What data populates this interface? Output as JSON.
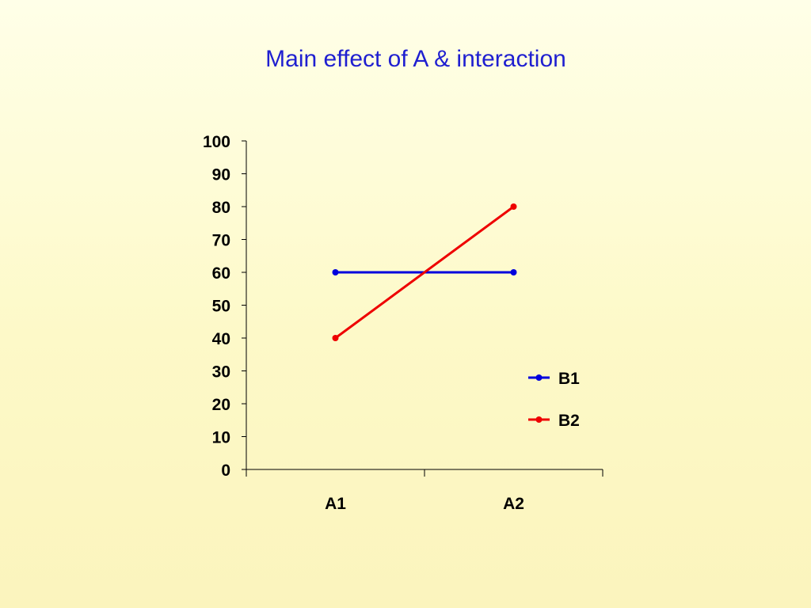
{
  "chart_data": {
    "type": "line",
    "title": "Main effect of A & interaction",
    "xlabel": "",
    "ylabel": "",
    "categories": [
      "A1",
      "A2"
    ],
    "ylim": [
      0,
      100
    ],
    "yticks": [
      0,
      10,
      20,
      30,
      40,
      50,
      60,
      70,
      80,
      90,
      100
    ],
    "grid": false,
    "legend_position": "right",
    "series": [
      {
        "name": "B1",
        "values": [
          60,
          60
        ],
        "color": "#0000dd"
      },
      {
        "name": "B2",
        "values": [
          40,
          80
        ],
        "color": "#ee0000"
      }
    ],
    "title_color": "#1f1fd0"
  }
}
